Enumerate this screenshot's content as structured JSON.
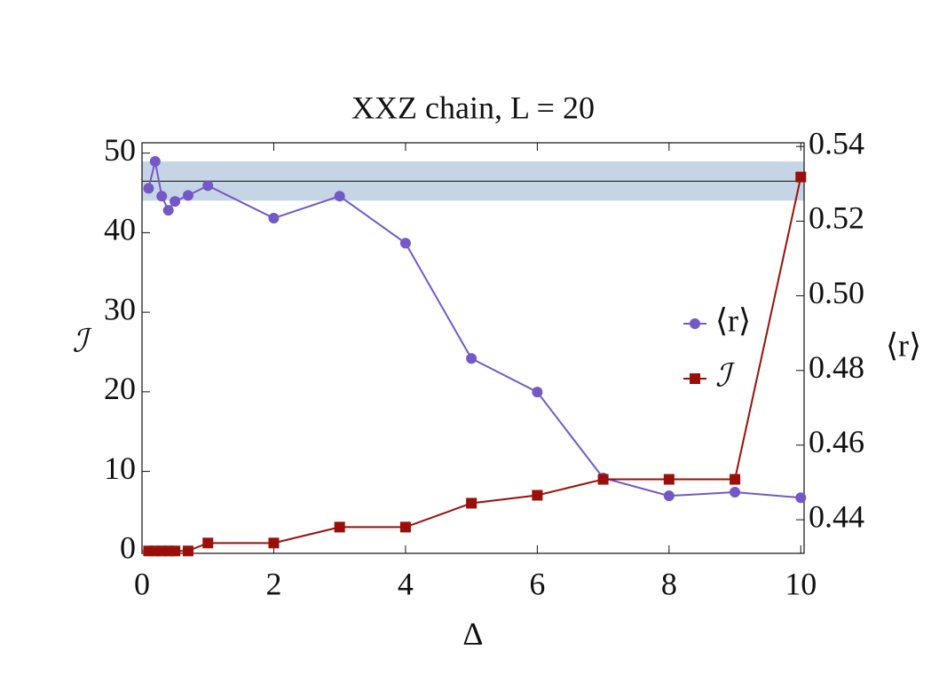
{
  "chart_data": {
    "type": "line",
    "title": "XXZ chain, L = 20",
    "x_label": "Δ",
    "y_label": "ℐ",
    "y2_label": "⟨r⟩",
    "x": [
      0.1,
      0.2,
      0.3,
      0.4,
      0.5,
      0.7,
      1,
      2,
      3,
      4,
      5,
      6,
      7,
      8,
      9,
      10
    ],
    "series": [
      {
        "name": "⟨r⟩",
        "color": "#7358c6",
        "marker": "circle",
        "axis": "y2",
        "values": [
          0.5288,
          0.536,
          0.5267,
          0.5229,
          0.5253,
          0.5269,
          0.5295,
          0.5208,
          0.5267,
          0.5141,
          0.4832,
          0.4742,
          0.4512,
          0.4464,
          0.4474,
          0.4459
        ]
      },
      {
        "name": "ℐ",
        "color": "#9b0f0a",
        "marker": "square",
        "values": [
          0,
          0,
          0,
          0,
          0,
          0,
          1,
          1,
          3,
          3,
          6,
          7,
          9,
          9,
          9,
          47
        ]
      }
    ],
    "reference_band": [
      0.5255,
      0.536
    ],
    "reference_band_color": "#c6d5e6",
    "reference_line": 0.5307,
    "xlim": [
      0,
      10.05
    ],
    "xticks": [
      0,
      2,
      4,
      6,
      8,
      10
    ],
    "ylim": [
      -0.3,
      51.3
    ],
    "yticks": [
      0,
      10,
      20,
      30,
      40,
      50
    ],
    "y2lim": [
      0.431,
      0.541
    ],
    "y2ticks": [
      0.44,
      0.46,
      0.48,
      {
        "value": 0.5,
        "label": "0.50"
      },
      0.52,
      0.54
    ],
    "legend": "right",
    "grid": false
  }
}
